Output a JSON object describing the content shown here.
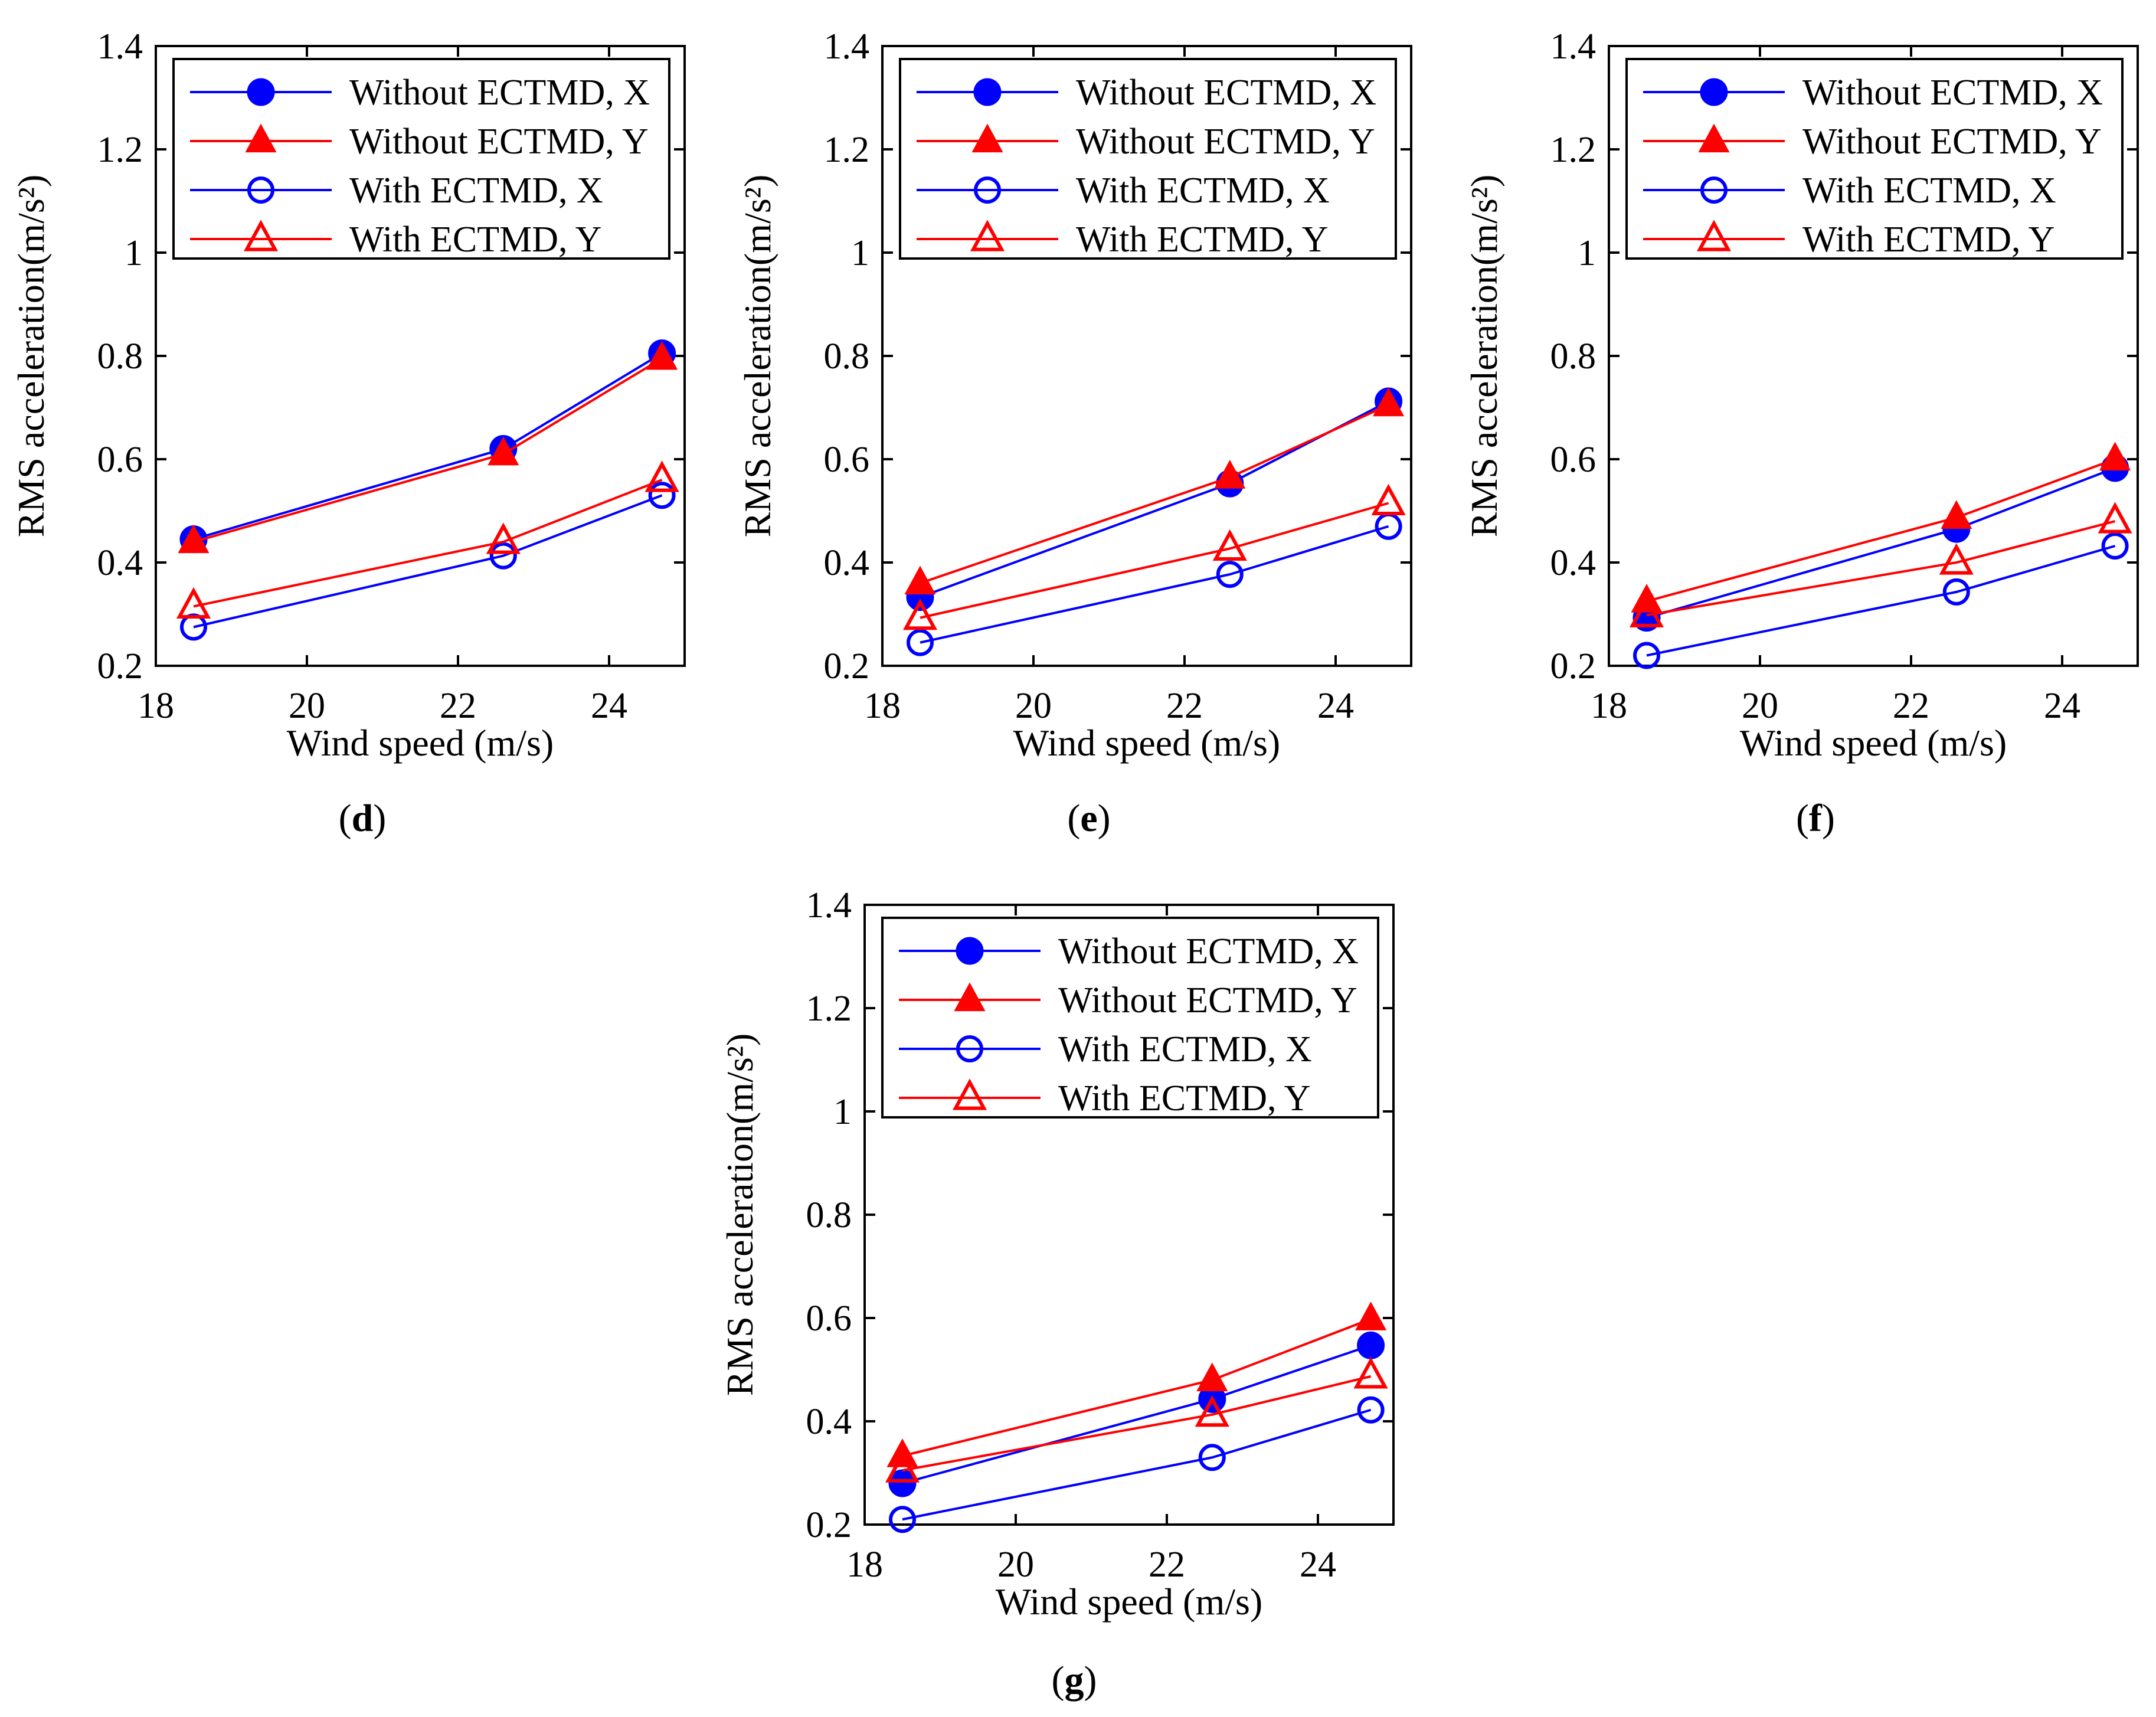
{
  "figure": {
    "panels": [
      {
        "id": "d",
        "caption": "d"
      },
      {
        "id": "e",
        "caption": "e"
      },
      {
        "id": "f",
        "caption": "f"
      },
      {
        "id": "g",
        "caption": "g"
      }
    ]
  },
  "chart_data": [
    {
      "type": "line",
      "panel": "d",
      "xlabel": "Wind speed (m/s)",
      "ylabel": "RMS acceleration(m/s²)",
      "xlim": [
        18,
        25
      ],
      "ylim": [
        0.2,
        1.4
      ],
      "xticks": [
        18,
        20,
        22,
        24
      ],
      "yticks": [
        0.2,
        0.4,
        0.6,
        0.8,
        1,
        1.2,
        1.4
      ],
      "x": [
        18.5,
        22.6,
        24.7
      ],
      "legend_position": "top-left",
      "series": [
        {
          "name": "Without ECTMD, X",
          "color": "#0000ff",
          "marker": "filled-circle",
          "values": [
            0.445,
            0.62,
            0.805
          ]
        },
        {
          "name": "Without ECTMD, Y",
          "color": "#ff0000",
          "marker": "filled-triangle",
          "values": [
            0.44,
            0.61,
            0.795
          ]
        },
        {
          "name": "With ECTMD, X",
          "color": "#0000ff",
          "marker": "open-circle",
          "values": [
            0.275,
            0.413,
            0.53
          ]
        },
        {
          "name": "With ECTMD, Y",
          "color": "#ff0000",
          "marker": "open-triangle",
          "values": [
            0.315,
            0.44,
            0.56
          ]
        }
      ]
    },
    {
      "type": "line",
      "panel": "e",
      "xlabel": "Wind speed (m/s)",
      "ylabel": "RMS acceleration(m/s²)",
      "xlim": [
        18,
        25
      ],
      "ylim": [
        0.2,
        1.4
      ],
      "xticks": [
        18,
        20,
        22,
        24
      ],
      "yticks": [
        0.2,
        0.4,
        0.6,
        0.8,
        1,
        1.2,
        1.4
      ],
      "x": [
        18.5,
        22.6,
        24.7
      ],
      "legend_position": "top-left",
      "series": [
        {
          "name": "Without ECTMD, X",
          "color": "#0000ff",
          "marker": "filled-circle",
          "values": [
            0.333,
            0.553,
            0.712
          ]
        },
        {
          "name": "Without ECTMD, Y",
          "color": "#ff0000",
          "marker": "filled-triangle",
          "values": [
            0.36,
            0.565,
            0.705
          ]
        },
        {
          "name": "With ECTMD, X",
          "color": "#0000ff",
          "marker": "open-circle",
          "values": [
            0.245,
            0.377,
            0.47
          ]
        },
        {
          "name": "With ECTMD, Y",
          "color": "#ff0000",
          "marker": "open-triangle",
          "values": [
            0.293,
            0.427,
            0.515
          ]
        }
      ]
    },
    {
      "type": "line",
      "panel": "f",
      "xlabel": "Wind speed (m/s)",
      "ylabel": "RMS acceleration(m/s²)",
      "xlim": [
        18,
        25
      ],
      "ylim": [
        0.2,
        1.4
      ],
      "xticks": [
        18,
        20,
        22,
        24
      ],
      "yticks": [
        0.2,
        0.4,
        0.6,
        0.8,
        1,
        1.2,
        1.4
      ],
      "x": [
        18.5,
        22.6,
        24.7
      ],
      "legend_position": "top-left",
      "series": [
        {
          "name": "Without ECTMD, X",
          "color": "#0000ff",
          "marker": "filled-circle",
          "values": [
            0.293,
            0.465,
            0.583
          ]
        },
        {
          "name": "Without ECTMD, Y",
          "color": "#ff0000",
          "marker": "filled-triangle",
          "values": [
            0.325,
            0.487,
            0.6
          ]
        },
        {
          "name": "With ECTMD, X",
          "color": "#0000ff",
          "marker": "open-circle",
          "values": [
            0.22,
            0.343,
            0.432
          ]
        },
        {
          "name": "With ECTMD, Y",
          "color": "#ff0000",
          "marker": "open-triangle",
          "values": [
            0.298,
            0.4,
            0.48
          ]
        }
      ]
    },
    {
      "type": "line",
      "panel": "g",
      "xlabel": "Wind speed (m/s)",
      "ylabel": "RMS acceleration(m/s²)",
      "xlim": [
        18,
        25
      ],
      "ylim": [
        0.2,
        1.4
      ],
      "xticks": [
        18,
        20,
        22,
        24
      ],
      "yticks": [
        0.2,
        0.4,
        0.6,
        0.8,
        1,
        1.2,
        1.4
      ],
      "x": [
        18.5,
        22.6,
        24.7
      ],
      "legend_position": "top-left",
      "series": [
        {
          "name": "Without ECTMD, X",
          "color": "#0000ff",
          "marker": "filled-circle",
          "values": [
            0.28,
            0.443,
            0.547
          ]
        },
        {
          "name": "Without ECTMD, Y",
          "color": "#ff0000",
          "marker": "filled-triangle",
          "values": [
            0.333,
            0.48,
            0.598
          ]
        },
        {
          "name": "With ECTMD, X",
          "color": "#0000ff",
          "marker": "open-circle",
          "values": [
            0.21,
            0.33,
            0.422
          ]
        },
        {
          "name": "With ECTMD, Y",
          "color": "#ff0000",
          "marker": "open-triangle",
          "values": [
            0.305,
            0.413,
            0.487
          ]
        }
      ]
    }
  ]
}
